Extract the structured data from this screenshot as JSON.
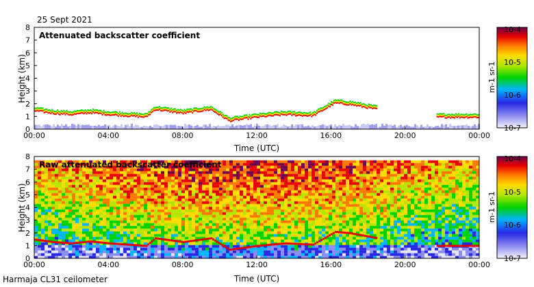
{
  "date_label": "25 Sept 2021",
  "footer": "Harmaja CL31 ceilometer",
  "chart_data": [
    {
      "type": "heatmap",
      "title": "Attenuated backscatter coefficient",
      "xlabel": "Time (UTC)",
      "ylabel": "Height (km)",
      "xlim": [
        0,
        24
      ],
      "ylim": [
        0,
        8
      ],
      "xticks": [
        "00:00",
        "04:00",
        "08:00",
        "12:00",
        "16:00",
        "20:00",
        "00:00"
      ],
      "yticks": [
        "0",
        "1",
        "2",
        "3",
        "4",
        "5",
        "6",
        "7",
        "8"
      ],
      "colorbar": {
        "label": "m-1 sr-1",
        "ticks": [
          "10-4",
          "10-5",
          "10-6",
          "10-7"
        ],
        "range": [
          1e-07,
          0.0001
        ],
        "scale": "log"
      },
      "cloud_layer_km": [
        {
          "t": 0.0,
          "h": 1.5
        },
        {
          "t": 1.0,
          "h": 1.3
        },
        {
          "t": 2.0,
          "h": 1.2
        },
        {
          "t": 3.0,
          "h": 1.35
        },
        {
          "t": 4.0,
          "h": 1.2
        },
        {
          "t": 5.0,
          "h": 1.1
        },
        {
          "t": 6.0,
          "h": 1.0
        },
        {
          "t": 6.5,
          "h": 1.6
        },
        {
          "t": 8.0,
          "h": 1.3
        },
        {
          "t": 9.5,
          "h": 1.6
        },
        {
          "t": 10.5,
          "h": 0.7
        },
        {
          "t": 12.0,
          "h": 1.0
        },
        {
          "t": 13.5,
          "h": 1.2
        },
        {
          "t": 15.0,
          "h": 1.1
        },
        {
          "t": 16.2,
          "h": 2.1
        },
        {
          "t": 17.0,
          "h": 2.0
        },
        {
          "t": 18.5,
          "h": 1.6
        },
        {
          "t": 21.7,
          "h": 1.0
        },
        {
          "t": 24.0,
          "h": 1.0
        }
      ]
    },
    {
      "type": "heatmap",
      "title": "Raw attenuated backscatter coefficient",
      "xlabel": "Time (UTC)",
      "ylabel": "Height (km)",
      "xlim": [
        0,
        24
      ],
      "ylim": [
        0,
        8
      ],
      "xticks": [
        "00:00",
        "04:00",
        "08:00",
        "12:00",
        "16:00",
        "20:00",
        "00:00"
      ],
      "yticks": [
        "0",
        "1",
        "2",
        "3",
        "4",
        "5",
        "6",
        "7",
        "8"
      ],
      "colorbar": {
        "label": "m-1 sr-1",
        "ticks": [
          "10-4",
          "10-5",
          "10-6",
          "10-7"
        ],
        "range": [
          1e-07,
          0.0001
        ],
        "scale": "log"
      },
      "signal_top_km": 7.7
    }
  ]
}
